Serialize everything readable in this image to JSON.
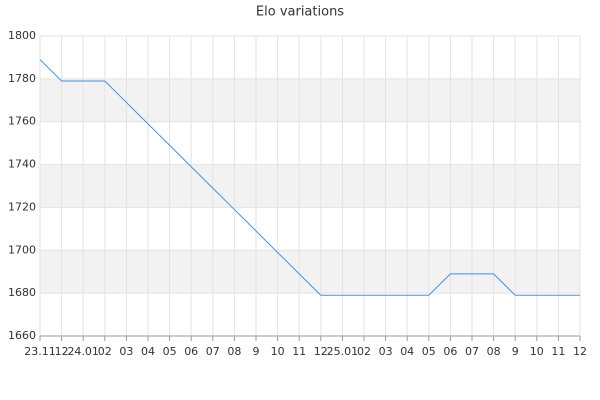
{
  "chart_data": {
    "type": "line",
    "title": "Elo variations",
    "categories": [
      "23.11",
      "12",
      "24.01",
      "02",
      "03",
      "04",
      "05",
      "06",
      "07",
      "08",
      "9",
      "10",
      "11",
      "12",
      "25.01",
      "02",
      "03",
      "04",
      "05",
      "06",
      "07",
      "08",
      "9",
      "10",
      "11",
      "12"
    ],
    "series": [
      {
        "color": "#4a8fd9",
        "values": [
          1789,
          1779,
          1779,
          1779,
          1769,
          1759,
          1749,
          1739,
          1729,
          1719,
          1709,
          1699,
          1689,
          1679,
          1679,
          1679,
          1679,
          1679,
          1679,
          1689,
          1689,
          1689,
          1679,
          1679,
          1679,
          1679
        ]
      }
    ],
    "ylim": [
      1660,
      1800
    ],
    "yticks": [
      1660,
      1680,
      1700,
      1720,
      1740,
      1760,
      1780,
      1800
    ],
    "grid": true,
    "band_color": "#f2f2f2"
  }
}
